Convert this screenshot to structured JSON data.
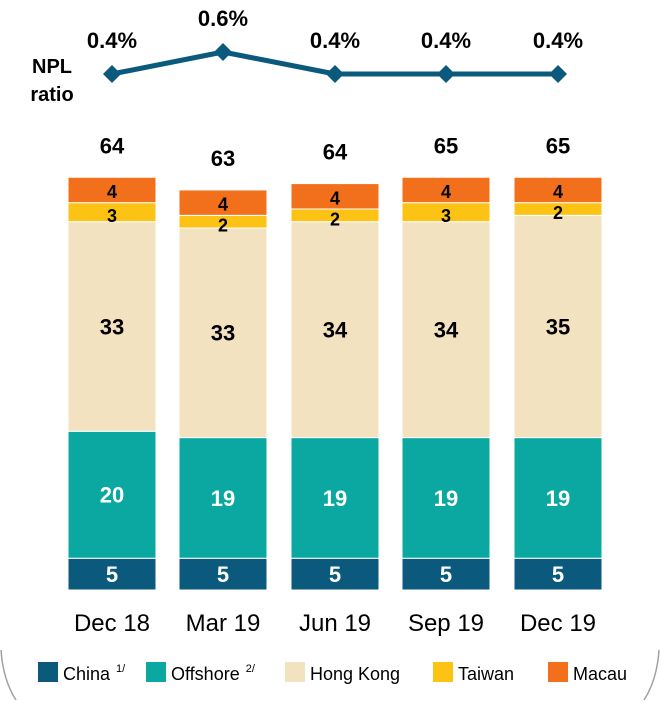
{
  "chart_data": {
    "type": "stacked-bar-with-line",
    "categories": [
      "Dec 18",
      "Mar 19",
      "Jun 19",
      "Sep 19",
      "Dec 19"
    ],
    "totals": [
      64,
      63,
      64,
      65,
      65
    ],
    "series": [
      {
        "name": "China",
        "superscript": "1/",
        "color": "#0b5a7d",
        "values": [
          5,
          5,
          5,
          5,
          5
        ]
      },
      {
        "name": "Offshore",
        "superscript": "2/",
        "color": "#0aa8a0",
        "values": [
          20,
          19,
          19,
          19,
          19
        ]
      },
      {
        "name": "Hong Kong",
        "superscript": "",
        "color": "#f2e2c0",
        "values": [
          33,
          33,
          34,
          34,
          35
        ]
      },
      {
        "name": "Taiwan",
        "superscript": "",
        "color": "#fcc214",
        "values": [
          3,
          2,
          2,
          3,
          2
        ]
      },
      {
        "name": "Macau",
        "superscript": "",
        "color": "#f26f1c",
        "values": [
          4,
          4,
          4,
          4,
          4
        ]
      }
    ],
    "line": {
      "name_line1": "NPL",
      "name_line2": "ratio",
      "color": "#0b5a7d",
      "values": [
        0.4,
        0.6,
        0.4,
        0.4,
        0.4
      ],
      "labels": [
        "0.4%",
        "0.6%",
        "0.4%",
        "0.4%",
        "0.4%"
      ]
    },
    "legend_position": "bottom"
  }
}
